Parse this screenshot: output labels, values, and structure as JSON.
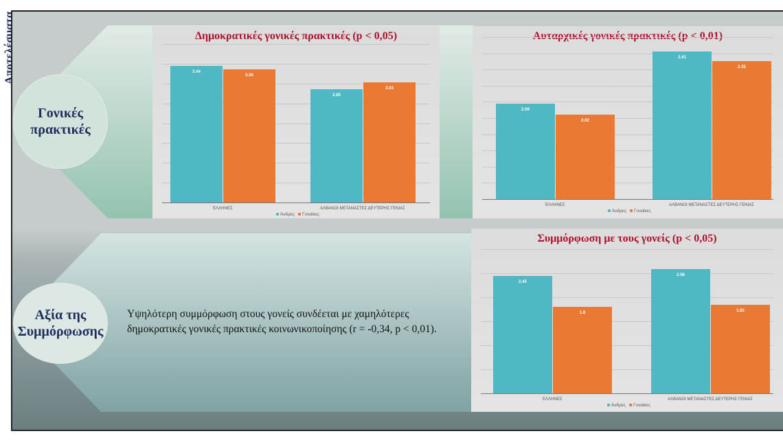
{
  "side_title": "Αποτελέσματα",
  "sections": [
    {
      "label_line1": "Γονικές",
      "label_line2": "πρακτικές"
    },
    {
      "label_line1": "Αξία της",
      "label_line2": "Συμμόρφωσης"
    }
  ],
  "finding": {
    "line1": "Υψηλότερη συμμόρφωση στους γονείς συνδέεται με χαμηλότερες",
    "line2": "δημοκρατικές γονικές πρακτικές κοινωνικοποίησης (r = -0,34, p < 0,01)."
  },
  "colors": {
    "men": "#4fb8c4",
    "women": "#ea7a33",
    "title": "#b0102c"
  },
  "chart_data": [
    {
      "type": "bar",
      "title": "Δημοκρατικές γονικές πρακτικές (p < 0,05)",
      "categories": [
        "ΈΛΛΗΝΕΣ",
        "ΑΛΒΑΝΟΙ ΜΕΤΑΝΑΣΤΕΣ ΔΕΥΤΕΡΗΣ ΓΕΝΙΑΣ"
      ],
      "series": [
        {
          "name": "Άνδρες",
          "values": [
            3.44,
            2.85
          ]
        },
        {
          "name": "Γυναίκες",
          "values": [
            3.36,
            3.03
          ]
        }
      ],
      "ylim": [
        0,
        4
      ],
      "grid_step": 0.5,
      "legend": "bottom"
    },
    {
      "type": "bar",
      "title": "Αυταρχικές γονικές πρακτικές (p < 0,01)",
      "categories": [
        "ΈΛΛΗΝΕΣ",
        "ΑΛΒΑΝΟΙ ΜΕΤΑΝΑΣΤΕΣ ΔΕΥΤΕΡΗΣ ΓΕΝΙΑΣ"
      ],
      "series": [
        {
          "name": "Άνδρες",
          "values": [
            2.09,
            2.41
          ]
        },
        {
          "name": "Γυναίκες",
          "values": [
            2.02,
            2.35
          ]
        }
      ],
      "ylim": [
        1.5,
        2.5
      ],
      "grid_step": 0.1,
      "legend": "bottom"
    },
    {
      "type": "bar",
      "title": "Συμμόρφωση με τους γονείς (p < 0,05)",
      "categories": [
        "ΈΛΛΗΝΕΣ",
        "ΑΛΒΑΝΟΙ ΜΕΤΑΝΑΣΤΕΣ ΔΕΥΤΕΡΗΣ ΓΕΝΙΑΣ"
      ],
      "series": [
        {
          "name": "Άνδρες",
          "values": [
            2.45,
            2.58
          ]
        },
        {
          "name": "Γυναίκες",
          "values": [
            1.8,
            1.85
          ]
        }
      ],
      "ylim": [
        0,
        3
      ],
      "grid_step": 0.5,
      "legend": "bottom"
    }
  ]
}
